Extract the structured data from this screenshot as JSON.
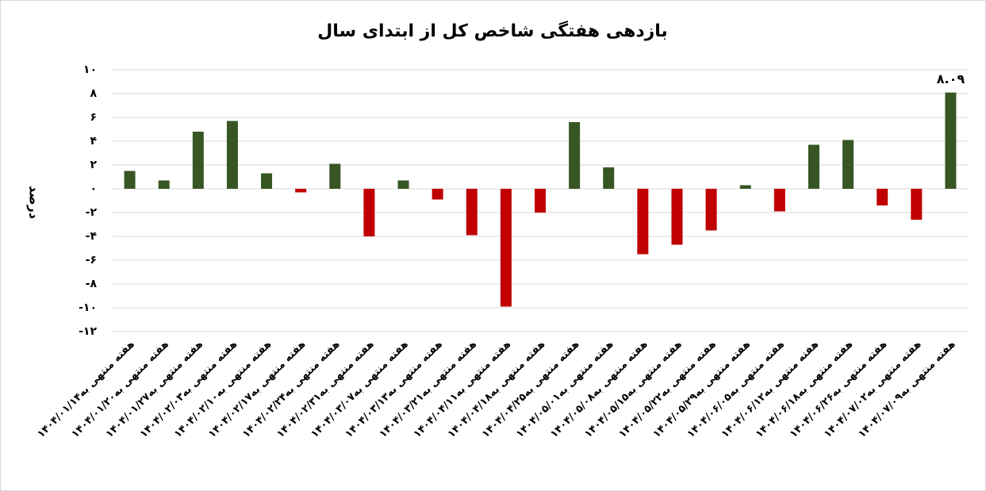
{
  "chart_data": {
    "type": "bar",
    "title": "بازدهی هفتگی شاخص کل از ابتدای سال",
    "y_label": "درصد",
    "categories": [
      "هفته منتهی به۱۴۰۴/۰۱/۱۴",
      "هفته منتهی به۱۴۰۴/۰۱/۲۰",
      "هفته منتهی به۱۴۰۴/۰۱/۲۷",
      "هفته منتهی به۱۴۰۴/۰۲/۰۳",
      "هفته منتهی به۱۴۰۴/۰۲/۱۰",
      "هفته منتهی به۱۴۰۴/۰۲/۱۷",
      "هفته منتهی به۱۴۰۴/۰۲/۲۴",
      "هفته منتهی به۱۴۰۴/۰۲/۳۱",
      "هفته منتهی به۱۴۰۴/۰۳/۰۷",
      "هفته منتهی به۱۴۰۴/۰۳/۱۳",
      "هفته منتهی به۱۴۰۴/۰۳/۲۱",
      "هفته منتهی به۱۴۰۴/۰۴/۱۱",
      "هفته منتهی به۱۴۰۴/۰۴/۱۸",
      "هفته منتهی به۱۴۰۴/۰۴/۲۵",
      "هفته منتهی به۱۴۰۴/۰۵/۰۱",
      "هفته منتهی به۱۴۰۴/۰۵/۰۸",
      "هفته منتهی به۱۴۰۴/۰۵/۱۵",
      "هفته منتهی به۱۴۰۴/۰۵/۲۲",
      "هفته منتهی به۱۴۰۴/۰۵/۲۹",
      "هفته منتهی به۱۴۰۴/۰۶/۰۵",
      "هفته منتهی به۱۴۰۴/۰۶/۱۲",
      "هفته منتهی به۱۴۰۴/۰۶/۱۸",
      "هفته منتهی به۱۴۰۴/۰۶/۲۶",
      "هفته منتهی به۱۴۰۴/۰۷/۰۲",
      "هفته منتهی به۱۴۰۴/۰۷/۰۹"
    ],
    "values": [
      1.5,
      0.7,
      4.8,
      5.7,
      1.3,
      -0.3,
      2.1,
      -4.0,
      0.7,
      -0.9,
      -3.9,
      -9.9,
      -2.0,
      5.6,
      1.8,
      -5.5,
      -4.7,
      -3.5,
      0.3,
      -1.9,
      3.7,
      4.1,
      -1.4,
      -2.6,
      8.09
    ],
    "value_labels": [
      null,
      null,
      null,
      null,
      null,
      null,
      null,
      null,
      null,
      null,
      null,
      null,
      null,
      null,
      null,
      null,
      null,
      null,
      null,
      null,
      null,
      null,
      null,
      null,
      "۸.۰۹"
    ],
    "positive_color": "#375623",
    "negative_color": "#c00000",
    "ylim": [
      -12,
      10
    ],
    "yticks": [
      {
        "value": -12,
        "label": "-۱۲"
      },
      {
        "value": -10,
        "label": "-۱۰"
      },
      {
        "value": -8,
        "label": "-۸"
      },
      {
        "value": -6,
        "label": "-۶"
      },
      {
        "value": -4,
        "label": "-۴"
      },
      {
        "value": -2,
        "label": "-۲"
      },
      {
        "value": 0,
        "label": "۰"
      },
      {
        "value": 2,
        "label": "۲"
      },
      {
        "value": 4,
        "label": "۴"
      },
      {
        "value": 6,
        "label": "۶"
      },
      {
        "value": 8,
        "label": "۸"
      },
      {
        "value": 10,
        "label": "۱۰"
      }
    ],
    "grid": true
  }
}
